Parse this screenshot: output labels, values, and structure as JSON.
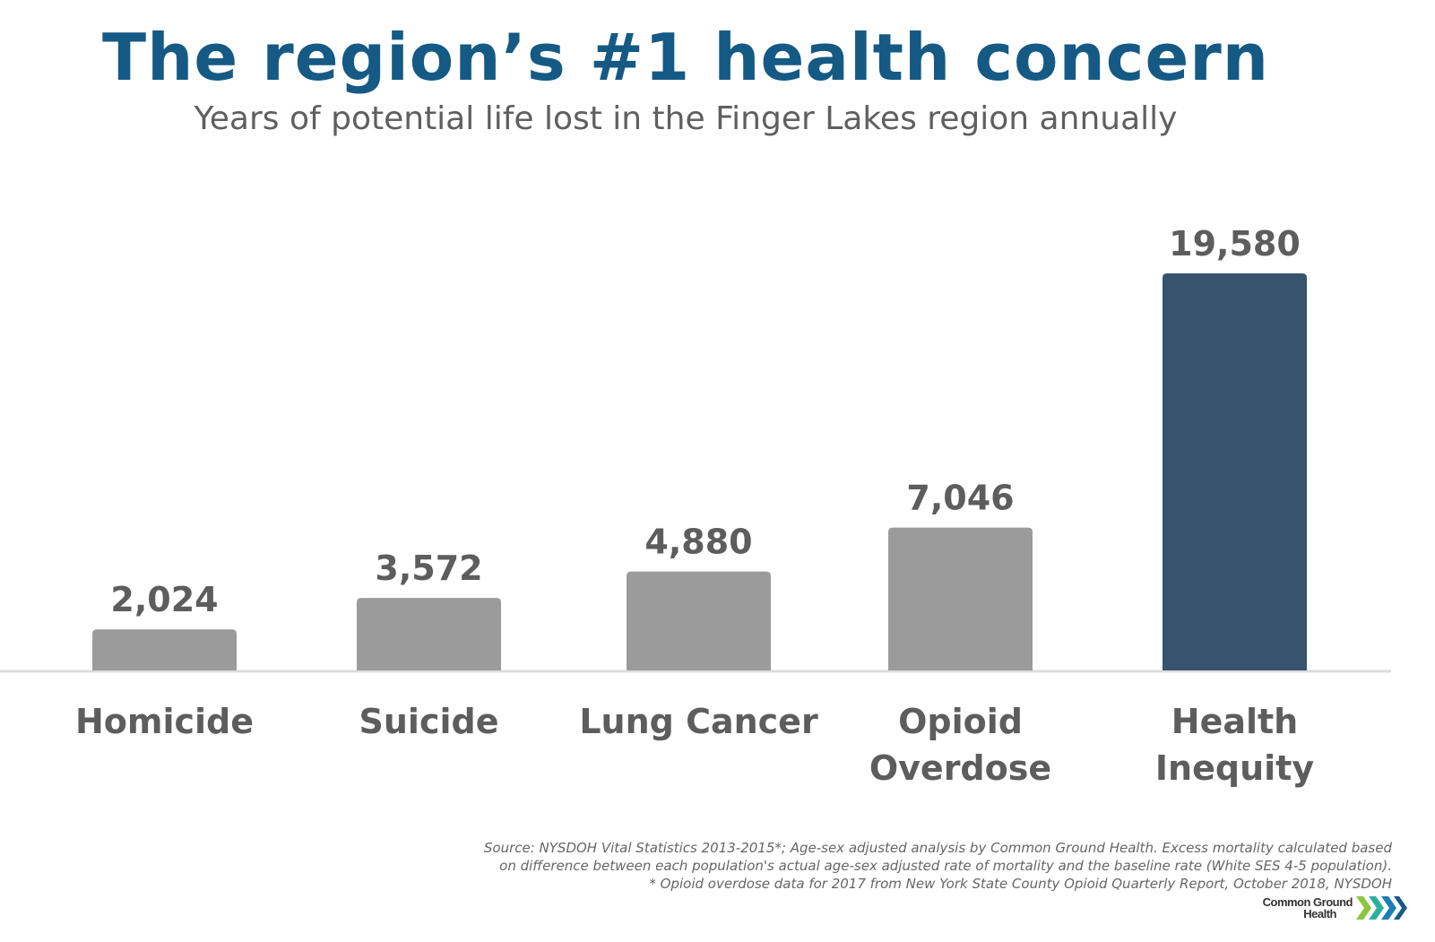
{
  "chart_data": {
    "type": "bar",
    "title": "The region’s #1 health concern",
    "subtitle": "Years of potential life lost in the Finger Lakes region annually",
    "categories": [
      [
        "Homicide"
      ],
      [
        "Suicide"
      ],
      [
        "Lung Cancer"
      ],
      [
        "Opioid",
        "Overdose"
      ],
      [
        "Health",
        "Inequity"
      ]
    ],
    "values": [
      2024,
      3572,
      4880,
      7046,
      19580
    ],
    "data_labels": [
      "2,024",
      "3,572",
      "4,880",
      "7,046",
      "19,580"
    ],
    "colors": [
      "#9b9b9b",
      "#9b9b9b",
      "#9b9b9b",
      "#9b9b9b",
      "#37536e"
    ],
    "xlabel": "",
    "ylabel": "",
    "ylim": [
      0,
      19580
    ],
    "grid": false
  },
  "footer": {
    "lines": [
      "Source: NYSDOH Vital Statistics 2013-2015*; Age-sex adjusted analysis by Common Ground Health.  Excess mortality calculated based",
      "on difference between each population's actual age-sex adjusted rate of mortality and the baseline rate (White SES 4-5 population).",
      "* Opioid overdose data for 2017 from New York State County Opioid Quarterly Report, October 2018, NYSDOH"
    ]
  },
  "logo": {
    "line1": "Common Ground",
    "line2": "Health"
  }
}
